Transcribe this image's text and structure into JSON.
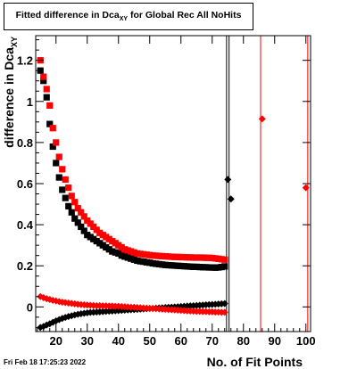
{
  "title_main": "Fitted difference in Dca",
  "title_sub": "XY",
  "title_tail": " for Global Rec All NoHits",
  "timestamp": "Fri Feb 18 17:25:23 2022",
  "chart_data": {
    "type": "scatter",
    "xlabel": "No. of Fit Points",
    "ylabel_main": "difference in Dca",
    "ylabel_sub": "XY",
    "xlim": [
      13.5,
      101.5
    ],
    "ylim": [
      -0.12,
      1.32
    ],
    "x_ticks": [
      20,
      30,
      40,
      50,
      60,
      70,
      80,
      90,
      100
    ],
    "y_ticks": [
      0,
      0.2,
      0.4,
      0.6,
      0.8,
      1,
      1.2
    ],
    "y_tick_labels": [
      "0",
      "0.2",
      "0.4",
      "0.6",
      "0.8",
      "1",
      "1.2"
    ],
    "grid": false,
    "legend": "none",
    "vertical_lines": [
      {
        "x": 74.6,
        "color": "#000000"
      },
      {
        "x": 75.4,
        "color": "#000000"
      },
      {
        "x": 85.5,
        "color": "#ff0000"
      },
      {
        "x": 100.6,
        "color": "#ff0000"
      }
    ],
    "series": [
      {
        "color": "#000000",
        "marker": "square",
        "x": [
          15,
          16,
          17,
          18,
          19,
          20,
          21,
          22,
          23,
          24,
          25,
          26,
          27,
          28,
          29,
          30,
          31,
          32,
          33,
          34,
          35,
          36,
          37,
          38,
          39,
          40,
          41,
          42,
          43,
          44,
          45,
          46,
          47,
          48,
          49,
          50,
          51,
          52,
          53,
          54,
          55,
          56,
          57,
          58,
          59,
          60,
          61,
          62,
          63,
          64,
          65,
          66,
          67,
          68,
          69,
          70,
          71,
          72,
          73,
          74
        ],
        "y": [
          1.15,
          1.1,
          1.02,
          0.89,
          0.78,
          0.7,
          0.63,
          0.57,
          0.53,
          0.49,
          0.46,
          0.43,
          0.41,
          0.39,
          0.37,
          0.35,
          0.34,
          0.33,
          0.32,
          0.31,
          0.3,
          0.29,
          0.28,
          0.27,
          0.265,
          0.26,
          0.25,
          0.245,
          0.24,
          0.235,
          0.23,
          0.225,
          0.222,
          0.22,
          0.217,
          0.215,
          0.212,
          0.21,
          0.208,
          0.206,
          0.204,
          0.203,
          0.202,
          0.201,
          0.2,
          0.199,
          0.198,
          0.197,
          0.196,
          0.195,
          0.195,
          0.194,
          0.193,
          0.193,
          0.192,
          0.192,
          0.191,
          0.192,
          0.194,
          0.197
        ]
      },
      {
        "color": "#ff0000",
        "marker": "square",
        "x": [
          15,
          16,
          17,
          18,
          19,
          20,
          21,
          22,
          23,
          24,
          25,
          26,
          27,
          28,
          29,
          30,
          31,
          32,
          33,
          34,
          35,
          36,
          37,
          38,
          39,
          40,
          41,
          42,
          43,
          44,
          45,
          46,
          47,
          48,
          49,
          50,
          51,
          52,
          53,
          54,
          55,
          56,
          57,
          58,
          59,
          60,
          61,
          62,
          63,
          64,
          65,
          66,
          67,
          68,
          69,
          70,
          71,
          72,
          73,
          74
        ],
        "y": [
          1.2,
          1.12,
          1.06,
          0.98,
          0.87,
          0.8,
          0.73,
          0.67,
          0.62,
          0.58,
          0.54,
          0.51,
          0.48,
          0.46,
          0.44,
          0.42,
          0.405,
          0.39,
          0.375,
          0.36,
          0.35,
          0.34,
          0.33,
          0.32,
          0.31,
          0.3,
          0.29,
          0.28,
          0.275,
          0.27,
          0.265,
          0.26,
          0.258,
          0.256,
          0.254,
          0.252,
          0.25,
          0.249,
          0.248,
          0.247,
          0.246,
          0.245,
          0.244,
          0.243,
          0.243,
          0.242,
          0.242,
          0.241,
          0.241,
          0.24,
          0.24,
          0.24,
          0.24,
          0.239,
          0.239,
          0.238,
          0.236,
          0.234,
          0.232,
          0.23
        ]
      },
      {
        "color": "#000000",
        "marker": "diamond",
        "x": [
          15,
          16,
          17,
          18,
          19,
          20,
          21,
          22,
          23,
          24,
          25,
          26,
          27,
          28,
          29,
          30,
          31,
          32,
          33,
          34,
          35,
          36,
          37,
          38,
          39,
          40,
          41,
          42,
          43,
          44,
          45,
          46,
          47,
          48,
          49,
          50,
          51,
          52,
          53,
          54,
          55,
          56,
          57,
          58,
          59,
          60,
          61,
          62,
          63,
          64,
          65,
          66,
          67,
          68,
          69,
          70,
          71,
          72,
          73,
          74,
          75,
          76
        ],
        "y": [
          -0.1,
          -0.095,
          -0.088,
          -0.082,
          -0.075,
          -0.068,
          -0.062,
          -0.056,
          -0.051,
          -0.047,
          -0.043,
          -0.039,
          -0.036,
          -0.033,
          -0.031,
          -0.029,
          -0.027,
          -0.026,
          -0.025,
          -0.024,
          -0.023,
          -0.022,
          -0.021,
          -0.02,
          -0.019,
          -0.018,
          -0.017,
          -0.016,
          -0.015,
          -0.014,
          -0.013,
          -0.012,
          -0.011,
          -0.01,
          -0.009,
          -0.008,
          -0.007,
          -0.006,
          -0.005,
          -0.004,
          -0.003,
          -0.002,
          -0.001,
          0,
          0.001,
          0.002,
          0.003,
          0.004,
          0.005,
          0.006,
          0.007,
          0.008,
          0.009,
          0.01,
          0.011,
          0.012,
          0.013,
          0.014,
          0.015,
          0.016,
          0.62,
          0.525
        ]
      },
      {
        "color": "#ff0000",
        "marker": "diamond",
        "x": [
          15,
          16,
          17,
          18,
          19,
          20,
          21,
          22,
          23,
          24,
          25,
          26,
          27,
          28,
          29,
          30,
          31,
          32,
          33,
          34,
          35,
          36,
          37,
          38,
          39,
          40,
          41,
          42,
          43,
          44,
          45,
          46,
          47,
          48,
          49,
          50,
          51,
          52,
          53,
          54,
          55,
          56,
          57,
          58,
          59,
          60,
          61,
          62,
          63,
          64,
          65,
          66,
          67,
          68,
          69,
          70,
          71,
          72,
          73,
          74,
          86,
          100
        ],
        "y": [
          0.05,
          0.045,
          0.04,
          0.036,
          0.032,
          0.029,
          0.026,
          0.023,
          0.021,
          0.019,
          0.017,
          0.015,
          0.013,
          0.011,
          0.01,
          0.009,
          0.008,
          0.007,
          0.006,
          0.006,
          0.005,
          0.005,
          0.004,
          0.004,
          0.003,
          0.003,
          0.002,
          0.001,
          0,
          -0.001,
          -0.002,
          -0.003,
          -0.004,
          -0.005,
          -0.006,
          -0.007,
          -0.008,
          -0.009,
          -0.01,
          -0.011,
          -0.012,
          -0.013,
          -0.014,
          -0.015,
          -0.016,
          -0.017,
          -0.018,
          -0.019,
          -0.02,
          -0.021,
          -0.022,
          -0.022,
          -0.023,
          -0.023,
          -0.024,
          -0.024,
          -0.025,
          -0.025,
          -0.026,
          -0.026,
          0.915,
          0.58
        ]
      }
    ]
  }
}
